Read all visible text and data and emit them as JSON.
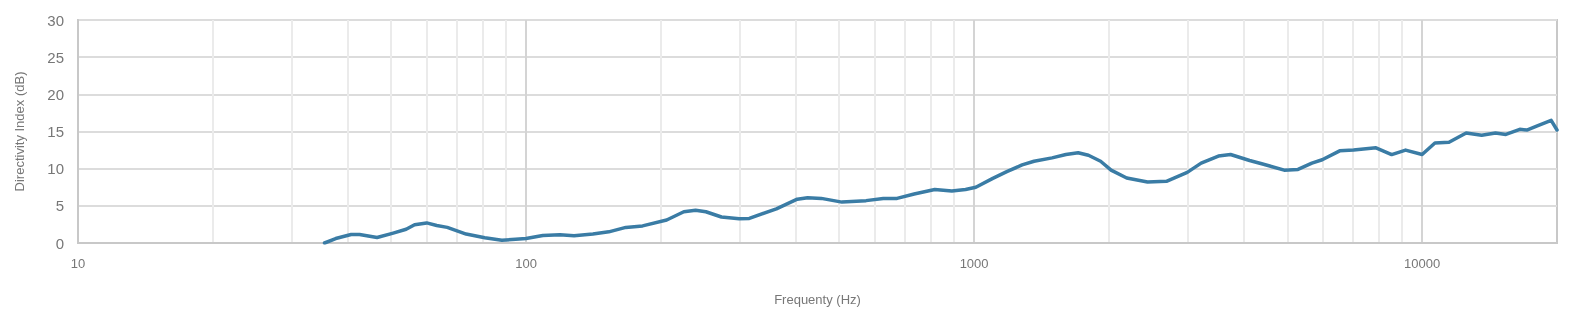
{
  "chart_data": {
    "type": "line",
    "xlabel": "Frequenty (Hz)",
    "ylabel": "Directivity Index (dB)",
    "log": "x",
    "xlim": [
      10,
      20000
    ],
    "ylim": [
      0,
      30
    ],
    "yticks": [
      0,
      5,
      10,
      15,
      20,
      25,
      30
    ],
    "xticks": [
      10,
      {
        "value": 20,
        "label": null
      },
      {
        "value": 30,
        "label": null
      },
      {
        "value": 40,
        "label": null
      },
      {
        "value": 50,
        "label": null
      },
      {
        "value": 60,
        "label": null
      },
      {
        "value": 70,
        "label": null
      },
      {
        "value": 80,
        "label": null
      },
      {
        "value": 90,
        "label": null
      },
      100,
      {
        "value": 200,
        "label": null
      },
      {
        "value": 300,
        "label": null
      },
      {
        "value": 400,
        "label": null
      },
      {
        "value": 500,
        "label": null
      },
      {
        "value": 600,
        "label": null
      },
      {
        "value": 700,
        "label": null
      },
      {
        "value": 800,
        "label": null
      },
      {
        "value": 900,
        "label": null
      },
      1000,
      {
        "value": 2000,
        "label": null
      },
      {
        "value": 3000,
        "label": null
      },
      {
        "value": 4000,
        "label": null
      },
      {
        "value": 5000,
        "label": null
      },
      {
        "value": 6000,
        "label": null
      },
      {
        "value": 7000,
        "label": null
      },
      {
        "value": 8000,
        "label": null
      },
      {
        "value": 9000,
        "label": null
      },
      10000
    ],
    "grid": true,
    "marker": "none",
    "line_style": "solid",
    "series": [
      {
        "color": "#3a7ca5",
        "x": [
          35.5,
          37.6,
          40.7,
          42.5,
          46.5,
          50.3,
          54,
          56.4,
          60,
          63.2,
          66.7,
          73.5,
          80.9,
          88.3,
          94.8,
          100,
          109,
          119,
          128,
          141,
          153,
          167,
          182,
          206,
          225,
          239,
          252,
          273,
          299,
          315,
          362,
          403,
          425,
          456,
          507,
          574,
          627,
          673,
          735,
          817,
          892,
          957,
          1009,
          1101,
          1183,
          1280,
          1361,
          1493,
          1603,
          1707,
          1800,
          1916,
          2022,
          2191,
          2439,
          2687,
          2991,
          3212,
          3510,
          3736,
          4121,
          4426,
          4923,
          5284,
          5675,
          5984,
          6546,
          7030,
          7889,
          8551,
          9185,
          10000,
          10680,
          11480,
          12540,
          13580,
          14580,
          15380,
          16520,
          17130,
          18070,
          19410,
          20000
        ],
        "values": [
          0,
          0.6,
          1.15,
          1.15,
          0.74,
          1.3,
          1.85,
          2.45,
          2.7,
          2.35,
          2.1,
          1.2,
          0.7,
          0.37,
          0.5,
          0.6,
          1.0,
          1.1,
          0.97,
          1.2,
          1.5,
          2.1,
          2.3,
          3.1,
          4.2,
          4.4,
          4.2,
          3.5,
          3.25,
          3.3,
          4.6,
          5.9,
          6.1,
          6.0,
          5.5,
          5.7,
          6.0,
          6.0,
          6.6,
          7.2,
          7.0,
          7.2,
          7.5,
          8.7,
          9.6,
          10.5,
          11.0,
          11.45,
          11.9,
          12.15,
          11.8,
          11.0,
          9.8,
          8.75,
          8.2,
          8.3,
          9.5,
          10.75,
          11.7,
          11.9,
          11.1,
          10.6,
          9.8,
          9.9,
          10.75,
          11.2,
          12.4,
          12.5,
          12.8,
          11.9,
          12.5,
          11.9,
          13.45,
          13.55,
          14.8,
          14.5,
          14.8,
          14.6,
          15.3,
          15.2,
          15.75,
          16.5,
          15.2
        ]
      }
    ]
  }
}
